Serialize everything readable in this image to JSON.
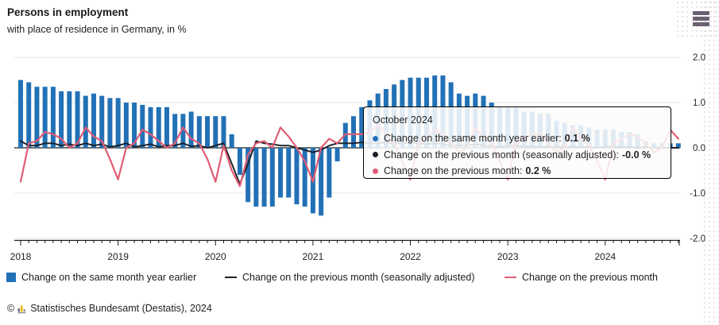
{
  "header": {
    "title": "Persons in employment",
    "subtitle": "with place of residence in Germany, in %"
  },
  "menu": {
    "icon": "hamburger-menu-icon"
  },
  "chart_data": {
    "type": "bar+line",
    "x_unit": "month",
    "start": "2018-01",
    "end": "2024-10",
    "ylim": [
      -2.0,
      2.0
    ],
    "grid": "horizontal-light",
    "y_axis": {
      "side": "right",
      "ticks": [
        "2.0",
        "1.0",
        "0.0",
        "-1.0",
        "-2.0"
      ]
    },
    "x_axis": {
      "year_labels": [
        "2018",
        "2019",
        "2020",
        "2021",
        "2022",
        "2023",
        "2024"
      ]
    },
    "series": [
      {
        "name": "Change on the same month year earlier",
        "type": "bar",
        "color": "#2271b6",
        "values": [
          1.5,
          1.45,
          1.35,
          1.35,
          1.35,
          1.25,
          1.25,
          1.25,
          1.15,
          1.2,
          1.15,
          1.1,
          1.1,
          1.0,
          1.0,
          0.95,
          0.9,
          0.9,
          0.9,
          0.75,
          0.75,
          0.8,
          0.7,
          0.7,
          0.7,
          0.7,
          0.3,
          -0.6,
          -1.2,
          -1.3,
          -1.3,
          -1.3,
          -1.1,
          -1.1,
          -1.25,
          -1.3,
          -1.45,
          -1.5,
          -1.1,
          -0.3,
          0.55,
          0.7,
          0.9,
          1.05,
          1.2,
          1.3,
          1.4,
          1.5,
          1.55,
          1.55,
          1.55,
          1.6,
          1.6,
          1.45,
          1.2,
          1.15,
          1.2,
          1.15,
          1.0,
          0.9,
          0.9,
          0.9,
          0.8,
          0.8,
          0.75,
          0.75,
          0.6,
          0.55,
          0.5,
          0.5,
          0.45,
          0.4,
          0.4,
          0.4,
          0.35,
          0.35,
          0.3,
          0.15,
          0.1,
          0.1,
          0.1,
          0.1
        ]
      },
      {
        "name": "Change on the previous month (seasonally adjusted)",
        "type": "line",
        "color": "#1b1f28",
        "values": [
          0.15,
          0.05,
          0.05,
          0.1,
          0.1,
          0.05,
          0.08,
          0.05,
          0.1,
          0.05,
          0.08,
          0.02,
          0.05,
          0.1,
          0.02,
          0.05,
          0.08,
          0.02,
          0.05,
          0.05,
          0.1,
          0.03,
          0.05,
          0.0,
          0.05,
          0.1,
          -0.35,
          -0.8,
          -0.35,
          0.15,
          0.1,
          0.08,
          0.05,
          0.05,
          0.0,
          -0.05,
          -0.1,
          -0.05,
          0.05,
          0.1,
          0.1,
          0.1,
          0.12,
          0.1,
          0.1,
          0.12,
          0.1,
          0.1,
          0.12,
          0.1,
          0.08,
          0.1,
          0.08,
          0.05,
          0.05,
          0.05,
          0.08,
          0.05,
          0.03,
          0.02,
          0.05,
          0.05,
          0.03,
          0.03,
          0.02,
          0.03,
          0.02,
          0.02,
          0.03,
          0.02,
          0.02,
          0.0,
          0.02,
          0.03,
          0.02,
          0.02,
          0.0,
          0.02,
          0.0,
          0.0,
          0.0,
          -0.0
        ]
      },
      {
        "name": "Change on the previous month",
        "type": "line",
        "color": "#e05c72",
        "values": [
          -0.75,
          0.1,
          0.15,
          0.35,
          0.3,
          0.2,
          0.0,
          0.1,
          0.45,
          0.25,
          0.15,
          -0.25,
          -0.7,
          0.0,
          0.1,
          0.4,
          0.3,
          0.15,
          0.0,
          0.1,
          0.45,
          0.2,
          0.1,
          -0.25,
          -0.75,
          0.05,
          -0.5,
          -0.85,
          -0.15,
          0.1,
          0.15,
          0.0,
          0.45,
          0.25,
          0.0,
          -0.3,
          -0.75,
          0.0,
          0.2,
          0.1,
          0.3,
          0.3,
          0.3,
          0.35,
          0.5,
          0.3,
          0.1,
          -0.3,
          -0.7,
          0.1,
          0.2,
          0.4,
          0.3,
          0.1,
          -0.1,
          0.0,
          0.45,
          0.2,
          0.1,
          -0.3,
          -0.7,
          0.1,
          0.2,
          0.3,
          0.3,
          0.1,
          -0.1,
          0.0,
          0.45,
          0.2,
          0.05,
          -0.3,
          -0.7,
          0.1,
          0.2,
          0.3,
          0.25,
          0.1,
          -0.1,
          0.0,
          0.4,
          0.2
        ]
      }
    ]
  },
  "tooltip": {
    "title": "October 2024",
    "rows": [
      {
        "label": "Change on the same month year earlier:",
        "value": "0.1 %",
        "color": "#2271b6"
      },
      {
        "label": "Change on the previous month (seasonally adjusted):",
        "value": "-0.0 %",
        "color": "#1b1f28"
      },
      {
        "label": "Change on the previous month:",
        "value": "0.2 %",
        "color": "#e05c72"
      }
    ]
  },
  "legend": {
    "items": [
      {
        "label": "Change on the same month year earlier",
        "color": "#2271b6",
        "swatch": "square"
      },
      {
        "label": "Change on the previous month (seasonally adjusted)",
        "color": "#1b1f28",
        "swatch": "line"
      },
      {
        "label": "Change on the previous month",
        "color": "#e05c72",
        "swatch": "line"
      }
    ]
  },
  "footer": {
    "copyright": "©",
    "logo": "destatis-bar-chart-icon",
    "text": "Statistisches Bundesamt (Destatis), 2024"
  }
}
